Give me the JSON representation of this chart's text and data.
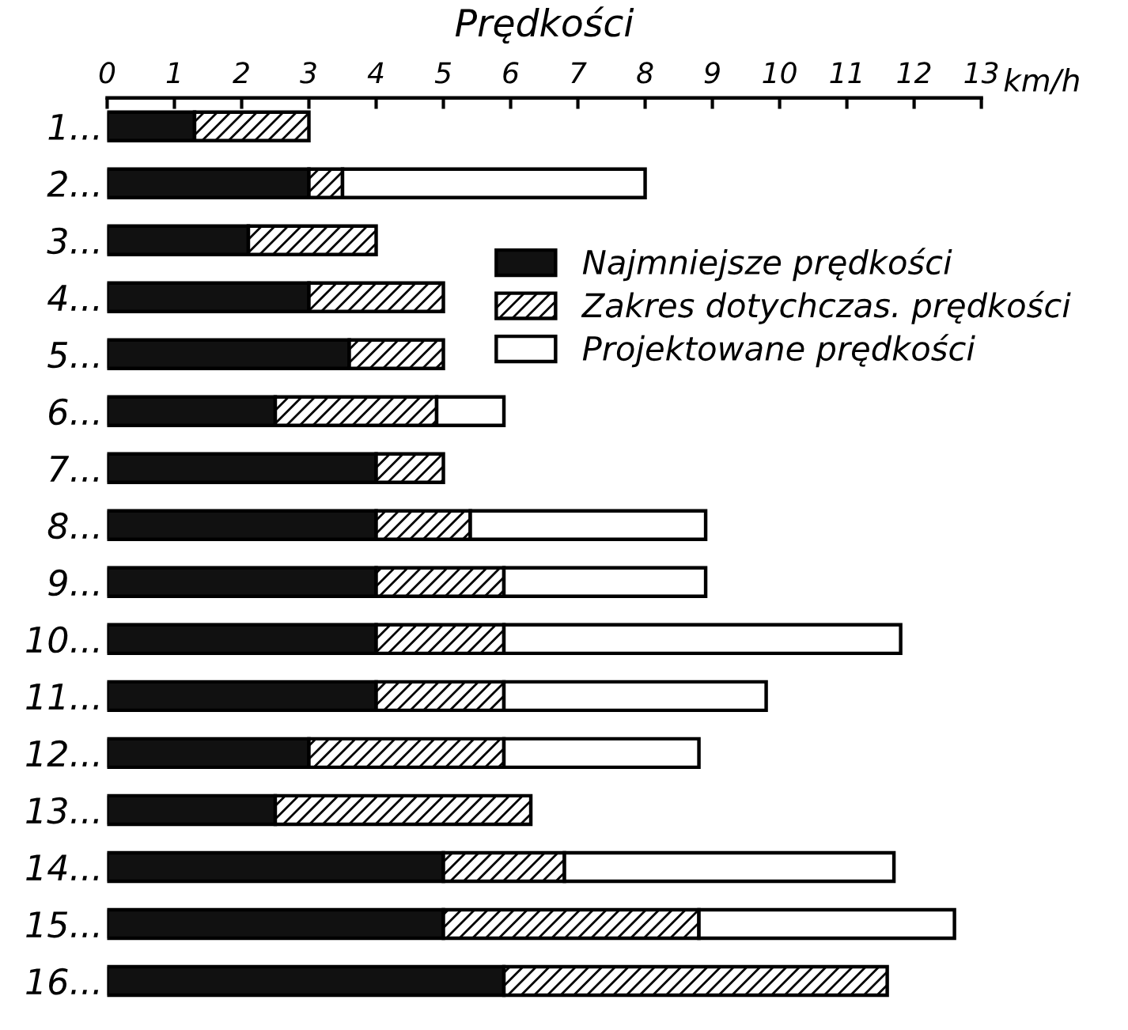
{
  "chart_data": {
    "type": "bar",
    "orientation": "horizontal",
    "stacked": true,
    "title": "Prędkości",
    "xlabel": "km/h",
    "categories": [
      "1...",
      "2...",
      "3...",
      "4...",
      "5...",
      "6...",
      "7...",
      "8...",
      "9...",
      "10...",
      "11...",
      "12...",
      "13...",
      "14...",
      "15...",
      "16..."
    ],
    "series": [
      {
        "name": "Najmniejsze prędkości",
        "color": "#111111",
        "values": [
          1.3,
          3.0,
          2.1,
          3.0,
          3.6,
          2.5,
          4.0,
          4.0,
          4.0,
          4.0,
          4.0,
          3.0,
          2.5,
          5.0,
          5.0,
          5.9
        ]
      },
      {
        "name": "Zakres dotychczas. prędkości",
        "color": "#000000",
        "values": [
          1.7,
          0.5,
          1.9,
          2.0,
          1.4,
          2.4,
          1.0,
          1.4,
          1.9,
          1.9,
          1.9,
          2.9,
          3.8,
          1.8,
          3.8,
          5.7
        ]
      },
      {
        "name": "Projektowane prędkości",
        "color": "#ffffff",
        "values": [
          null,
          4.5,
          null,
          null,
          null,
          1.0,
          null,
          3.5,
          3.0,
          5.9,
          3.9,
          2.9,
          null,
          4.9,
          3.8,
          null
        ]
      }
    ],
    "xlim": [
      0,
      13
    ],
    "xticks": [
      0,
      1,
      2,
      3,
      4,
      5,
      6,
      7,
      8,
      9,
      10,
      11,
      12,
      13
    ],
    "legend": "right",
    "grid": false
  }
}
